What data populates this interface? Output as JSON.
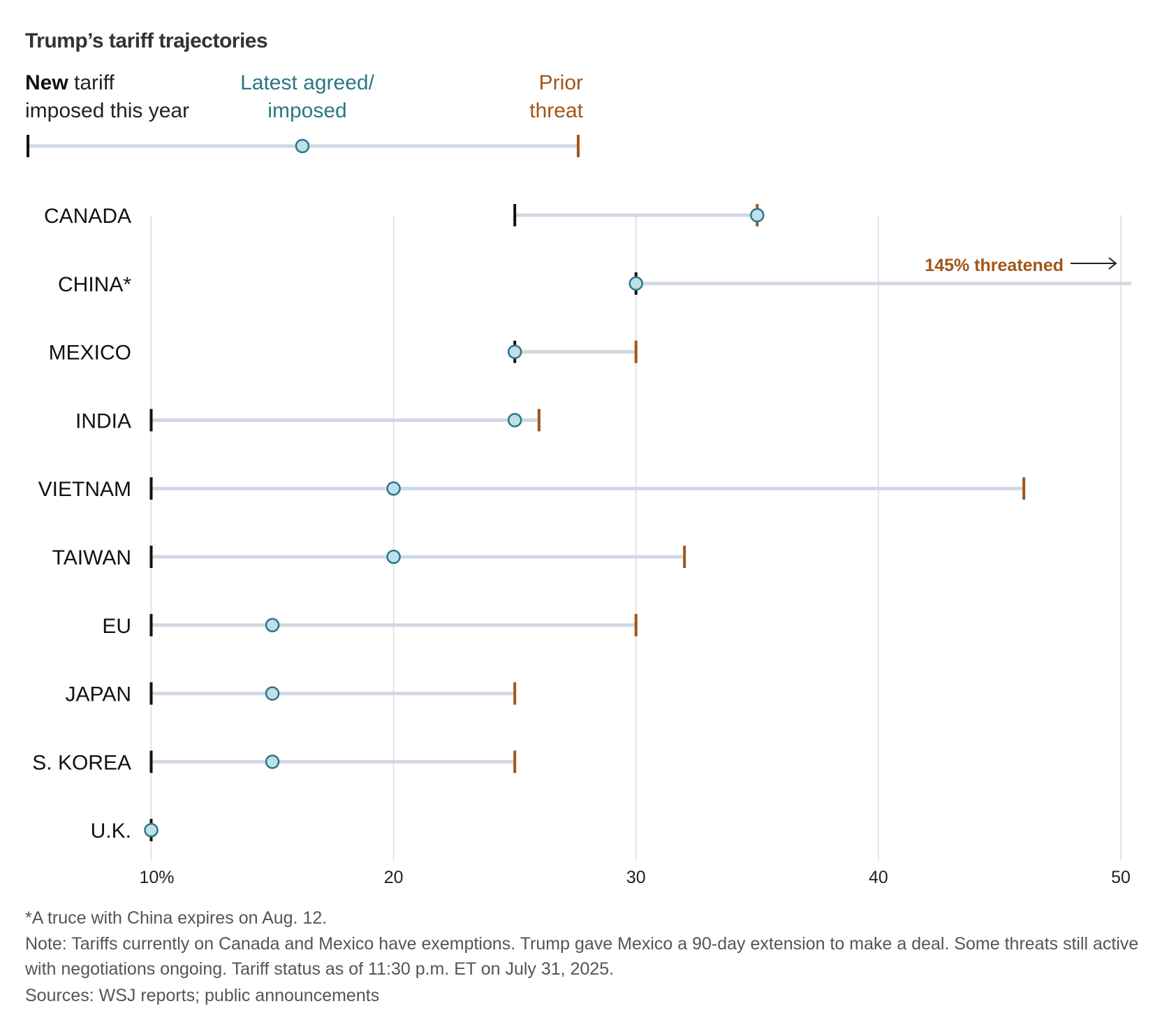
{
  "chart_data": {
    "type": "dumbbell",
    "title": "Trump’s tariff trajectories",
    "legend": {
      "new_bold": "New",
      "new_rest": " tariff",
      "new_line2": "imposed this year",
      "latest_line1": "Latest agreed/",
      "latest_line2": "imposed",
      "prior_line1": "Prior",
      "prior_line2": "threat"
    },
    "colors": {
      "new": "#111111",
      "latest_fill": "#bfe0ea",
      "latest_stroke": "#2a7686",
      "prior": "#a0561a",
      "line": "#cfd8e3",
      "grid": "#e3e3e3"
    },
    "xlim": [
      10,
      50
    ],
    "ticks": [
      10,
      20,
      30,
      40,
      50
    ],
    "tick_labels": [
      "10%",
      "20",
      "30",
      "40",
      "50"
    ],
    "rows": [
      {
        "country": "CANADA",
        "new": 25,
        "latest": 35,
        "prior": 35
      },
      {
        "country": "CHINA*",
        "new": 30,
        "latest": 30,
        "prior": 145
      },
      {
        "country": "MEXICO",
        "new": 25,
        "latest": 25,
        "prior": 30
      },
      {
        "country": "INDIA",
        "new": 10,
        "latest": 25,
        "prior": 26
      },
      {
        "country": "VIETNAM",
        "new": 10,
        "latest": 20,
        "prior": 46
      },
      {
        "country": "TAIWAN",
        "new": 10,
        "latest": 20,
        "prior": 32
      },
      {
        "country": "EU",
        "new": 10,
        "latest": 15,
        "prior": 30
      },
      {
        "country": "JAPAN",
        "new": 10,
        "latest": 15,
        "prior": 25
      },
      {
        "country": "S. KOREA",
        "new": 10,
        "latest": 15,
        "prior": 25
      },
      {
        "country": "U.K.",
        "new": 10,
        "latest": 10,
        "prior": 10
      }
    ],
    "annotation": "145% threatened"
  },
  "footnotes": [
    "*A truce with China expires on Aug. 12.",
    "Note: Tariffs currently on Canada and Mexico have exemptions. Trump gave Mexico a 90-day extension to make a deal. Some threats still active with negotiations ongoing. Tariff status as of 11:30 p.m. ET on July 31, 2025.",
    "Sources: WSJ reports; public announcements"
  ]
}
